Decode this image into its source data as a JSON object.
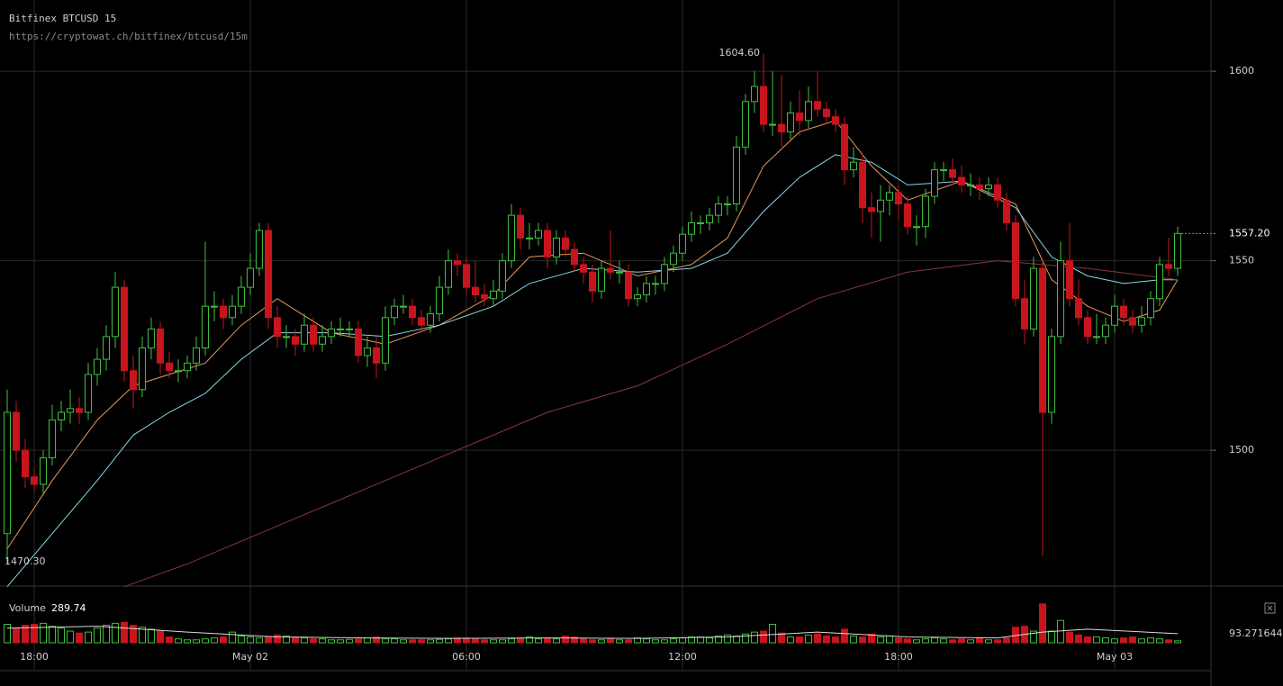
{
  "chart_data": {
    "type": "candlestick",
    "title": "Bitfinex BTCUSD 15",
    "subtitle": "https://cryptowat.ch/bitfinex/btcusd/15m",
    "ylim": [
      1464.4,
      1618.8
    ],
    "yticks": [
      1500,
      1550,
      1600
    ],
    "xlim": [
      -0.8,
      133.7
    ],
    "xticks": [
      {
        "value": 3,
        "label": "18:00"
      },
      {
        "value": 27,
        "label": "May 02"
      },
      {
        "value": 51,
        "label": "06:00"
      },
      {
        "value": 75,
        "label": "12:00"
      },
      {
        "value": 99,
        "label": "18:00"
      },
      {
        "value": 123,
        "label": "May 03"
      }
    ],
    "grid": true,
    "up_color": "#3fbf3f",
    "down_color": "#c8141c",
    "high_label": {
      "index": 84,
      "value": 1604.6,
      "label": "1604.60"
    },
    "low_label": {
      "index": 0,
      "value": 1470.3,
      "label": "1470.30"
    },
    "last_price": {
      "value": 1557.2,
      "label": "1557.20"
    },
    "ohlc": [
      [
        1478,
        1516,
        1470.3,
        1510
      ],
      [
        1510,
        1513,
        1497,
        1500
      ],
      [
        1500,
        1503,
        1490,
        1493
      ],
      [
        1493,
        1495,
        1489,
        1491
      ],
      [
        1491,
        1500,
        1488,
        1498
      ],
      [
        1498,
        1512,
        1496,
        1508
      ],
      [
        1508,
        1513,
        1505,
        1510
      ],
      [
        1510,
        1516,
        1507,
        1511
      ],
      [
        1511,
        1514,
        1507,
        1510
      ],
      [
        1510,
        1523,
        1508,
        1520
      ],
      [
        1520,
        1527,
        1517,
        1524
      ],
      [
        1524,
        1533,
        1521,
        1530
      ],
      [
        1530,
        1547,
        1527,
        1543
      ],
      [
        1543,
        1545,
        1518,
        1521
      ],
      [
        1521,
        1525,
        1511,
        1516
      ],
      [
        1516,
        1530,
        1514,
        1527
      ],
      [
        1527,
        1535,
        1524,
        1532
      ],
      [
        1532,
        1534,
        1520,
        1523
      ],
      [
        1523,
        1526,
        1519,
        1521
      ],
      [
        1521,
        1524,
        1518,
        1521
      ],
      [
        1521,
        1525,
        1519,
        1523
      ],
      [
        1523,
        1530,
        1521,
        1527
      ],
      [
        1527,
        1555,
        1525,
        1538
      ],
      [
        1538,
        1542,
        1534,
        1538
      ],
      [
        1538,
        1540,
        1532,
        1535
      ],
      [
        1535,
        1541,
        1533,
        1538
      ],
      [
        1538,
        1546,
        1536,
        1543
      ],
      [
        1543,
        1552,
        1541,
        1548
      ],
      [
        1548,
        1560,
        1546,
        1558
      ],
      [
        1558,
        1560,
        1532,
        1535
      ],
      [
        1535,
        1538,
        1527,
        1530
      ],
      [
        1530,
        1533,
        1527,
        1530
      ],
      [
        1530,
        1532,
        1525,
        1528
      ],
      [
        1528,
        1536,
        1526,
        1533
      ],
      [
        1533,
        1535,
        1526,
        1528
      ],
      [
        1528,
        1533,
        1526,
        1530
      ],
      [
        1530,
        1534,
        1528,
        1532
      ],
      [
        1532,
        1535,
        1530,
        1532
      ],
      [
        1532,
        1534,
        1530,
        1532
      ],
      [
        1532,
        1534,
        1523,
        1525
      ],
      [
        1525,
        1530,
        1522,
        1527
      ],
      [
        1527,
        1530,
        1519,
        1523
      ],
      [
        1523,
        1538,
        1521,
        1535
      ],
      [
        1535,
        1540,
        1533,
        1538
      ],
      [
        1538,
        1541,
        1536,
        1538
      ],
      [
        1538,
        1540,
        1533,
        1535
      ],
      [
        1535,
        1537,
        1531,
        1533
      ],
      [
        1533,
        1538,
        1531,
        1536
      ],
      [
        1536,
        1546,
        1534,
        1543
      ],
      [
        1543,
        1553,
        1541,
        1550
      ],
      [
        1550,
        1552,
        1546,
        1549
      ],
      [
        1549,
        1551,
        1541,
        1543
      ],
      [
        1543,
        1550,
        1539,
        1541
      ],
      [
        1541,
        1544,
        1538,
        1540
      ],
      [
        1540,
        1545,
        1538,
        1542
      ],
      [
        1542,
        1552,
        1540,
        1550
      ],
      [
        1550,
        1565,
        1548,
        1562
      ],
      [
        1562,
        1564,
        1553,
        1556
      ],
      [
        1556,
        1560,
        1553,
        1556
      ],
      [
        1556,
        1560,
        1554,
        1558
      ],
      [
        1558,
        1560,
        1548,
        1551
      ],
      [
        1551,
        1558,
        1549,
        1556
      ],
      [
        1556,
        1558,
        1551,
        1553
      ],
      [
        1553,
        1555,
        1547,
        1549
      ],
      [
        1549,
        1551,
        1544,
        1547
      ],
      [
        1547,
        1549,
        1539,
        1542
      ],
      [
        1542,
        1550,
        1540,
        1548
      ],
      [
        1548,
        1558,
        1545,
        1547
      ],
      [
        1547,
        1550,
        1544,
        1547
      ],
      [
        1547,
        1549,
        1538,
        1540
      ],
      [
        1540,
        1543,
        1538,
        1541
      ],
      [
        1541,
        1546,
        1539,
        1544
      ],
      [
        1544,
        1546,
        1541,
        1544
      ],
      [
        1544,
        1551,
        1542,
        1549
      ],
      [
        1549,
        1554,
        1547,
        1552
      ],
      [
        1552,
        1559,
        1550,
        1557
      ],
      [
        1557,
        1563,
        1555,
        1560
      ],
      [
        1560,
        1562,
        1557,
        1560
      ],
      [
        1560,
        1564,
        1558,
        1562
      ],
      [
        1562,
        1567,
        1560,
        1565
      ],
      [
        1565,
        1567,
        1562,
        1565
      ],
      [
        1565,
        1583,
        1563,
        1580
      ],
      [
        1580,
        1594,
        1578,
        1592
      ],
      [
        1592,
        1600,
        1589,
        1596
      ],
      [
        1596,
        1604.6,
        1584,
        1586
      ],
      [
        1586,
        1600,
        1583,
        1586
      ],
      [
        1586,
        1599,
        1580,
        1584
      ],
      [
        1584,
        1592,
        1582,
        1589
      ],
      [
        1589,
        1595,
        1583,
        1587
      ],
      [
        1587,
        1596,
        1585,
        1592
      ],
      [
        1592,
        1600,
        1588,
        1590
      ],
      [
        1590,
        1592,
        1586,
        1588
      ],
      [
        1588,
        1590,
        1584,
        1586
      ],
      [
        1586,
        1588,
        1570,
        1574
      ],
      [
        1574,
        1580,
        1572,
        1576
      ],
      [
        1576,
        1578,
        1560,
        1564
      ],
      [
        1564,
        1568,
        1556,
        1563
      ],
      [
        1563,
        1570,
        1555,
        1566
      ],
      [
        1566,
        1570,
        1562,
        1568
      ],
      [
        1568,
        1570,
        1561,
        1565
      ],
      [
        1565,
        1567,
        1557,
        1559
      ],
      [
        1559,
        1562,
        1554,
        1559
      ],
      [
        1559,
        1569,
        1556,
        1567
      ],
      [
        1567,
        1576,
        1565,
        1574
      ],
      [
        1574,
        1576,
        1571,
        1574
      ],
      [
        1574,
        1577,
        1570,
        1572
      ],
      [
        1572,
        1575,
        1568,
        1570
      ],
      [
        1570,
        1573,
        1567,
        1570
      ],
      [
        1570,
        1572,
        1566,
        1569
      ],
      [
        1569,
        1572,
        1567,
        1570
      ],
      [
        1570,
        1572,
        1564,
        1566
      ],
      [
        1566,
        1568,
        1558,
        1560
      ],
      [
        1560,
        1562,
        1538,
        1540
      ],
      [
        1540,
        1545,
        1528,
        1532
      ],
      [
        1532,
        1551,
        1530,
        1548
      ],
      [
        1548,
        1550,
        1472,
        1510
      ],
      [
        1510,
        1532,
        1507,
        1530
      ],
      [
        1530,
        1555,
        1528,
        1550
      ],
      [
        1550,
        1560,
        1538,
        1540
      ],
      [
        1540,
        1545,
        1533,
        1535
      ],
      [
        1535,
        1537,
        1528,
        1530
      ],
      [
        1530,
        1536,
        1528,
        1530
      ],
      [
        1530,
        1535,
        1528,
        1533
      ],
      [
        1533,
        1541,
        1531,
        1538
      ],
      [
        1538,
        1540,
        1533,
        1535
      ],
      [
        1535,
        1537,
        1531,
        1533
      ],
      [
        1533,
        1538,
        1531,
        1535
      ],
      [
        1535,
        1542,
        1533,
        1540
      ],
      [
        1540,
        1551,
        1538,
        1549
      ],
      [
        1549,
        1556,
        1546,
        1548
      ],
      [
        1548,
        1559,
        1546,
        1557.2
      ]
    ],
    "series": [
      {
        "color": "#e49a5a",
        "index": [
          0,
          5,
          10,
          14,
          18,
          22,
          26,
          30,
          36,
          42,
          48,
          54,
          58,
          64,
          70,
          76,
          80,
          84,
          88,
          92,
          96,
          100,
          106,
          112,
          116,
          120,
          124,
          128,
          130
        ],
        "values": [
          1474,
          1492,
          1508,
          1517,
          1520,
          1523,
          1533,
          1540,
          1531,
          1528,
          1533,
          1541,
          1551,
          1552,
          1546,
          1549,
          1556,
          1575,
          1584,
          1587,
          1575,
          1566,
          1571,
          1565,
          1545,
          1538,
          1534,
          1537,
          1545
        ]
      },
      {
        "color": "#86d6e6",
        "index": [
          0,
          5,
          10,
          14,
          18,
          22,
          26,
          30,
          36,
          42,
          48,
          54,
          58,
          64,
          70,
          76,
          80,
          84,
          88,
          92,
          96,
          100,
          106,
          112,
          116,
          120,
          124,
          128,
          130
        ],
        "values": [
          1464,
          1478,
          1492,
          1504,
          1510,
          1515,
          1524,
          1531,
          1531,
          1530,
          1533,
          1538,
          1544,
          1548,
          1547,
          1548,
          1552,
          1563,
          1572,
          1578,
          1576,
          1570,
          1571,
          1564,
          1551,
          1546,
          1544,
          1545,
          1545
        ]
      },
      {
        "color": "#8c3636",
        "index": [
          13,
          20,
          30,
          40,
          50,
          60,
          70,
          80,
          90,
          100,
          110,
          120,
          130
        ],
        "values": [
          1464,
          1470,
          1480,
          1490,
          1500,
          1510,
          1517,
          1528,
          1540,
          1547,
          1550,
          1548,
          1545
        ]
      }
    ],
    "volume": {
      "label": "Volume",
      "value": 289.74,
      "ylim": [
        0,
        500
      ],
      "values": [
        190,
        150,
        180,
        190,
        200,
        170,
        150,
        120,
        100,
        110,
        150,
        180,
        200,
        210,
        180,
        160,
        140,
        120,
        60,
        40,
        30,
        30,
        40,
        50,
        60,
        110,
        70,
        60,
        50,
        60,
        80,
        70,
        60,
        50,
        40,
        40,
        30,
        30,
        35,
        40,
        50,
        60,
        40,
        40,
        30,
        30,
        30,
        30,
        35,
        40,
        50,
        50,
        40,
        30,
        30,
        30,
        40,
        50,
        60,
        40,
        50,
        40,
        70,
        60,
        40,
        30,
        30,
        40,
        30,
        30,
        50,
        40,
        30,
        30,
        40,
        50,
        60,
        60,
        50,
        70,
        80,
        70,
        90,
        110,
        120,
        190,
        100,
        60,
        60,
        80,
        90,
        70,
        60,
        140,
        70,
        60,
        90,
        60,
        70,
        50,
        40,
        30,
        40,
        50,
        40,
        30,
        40,
        30,
        50,
        30,
        30,
        50,
        160,
        170,
        120,
        400,
        120,
        230,
        110,
        80,
        60,
        60,
        50,
        40,
        50,
        60,
        40,
        50,
        40,
        30,
        20
      ],
      "ma": {
        "color": "#d8d8d8",
        "index": [
          0,
          10,
          20,
          30,
          40,
          50,
          60,
          70,
          80,
          90,
          100,
          110,
          115,
          120,
          130
        ],
        "values": [
          150,
          170,
          110,
          60,
          50,
          45,
          50,
          45,
          60,
          110,
          60,
          50,
          110,
          140,
          93.271644
        ]
      }
    }
  }
}
